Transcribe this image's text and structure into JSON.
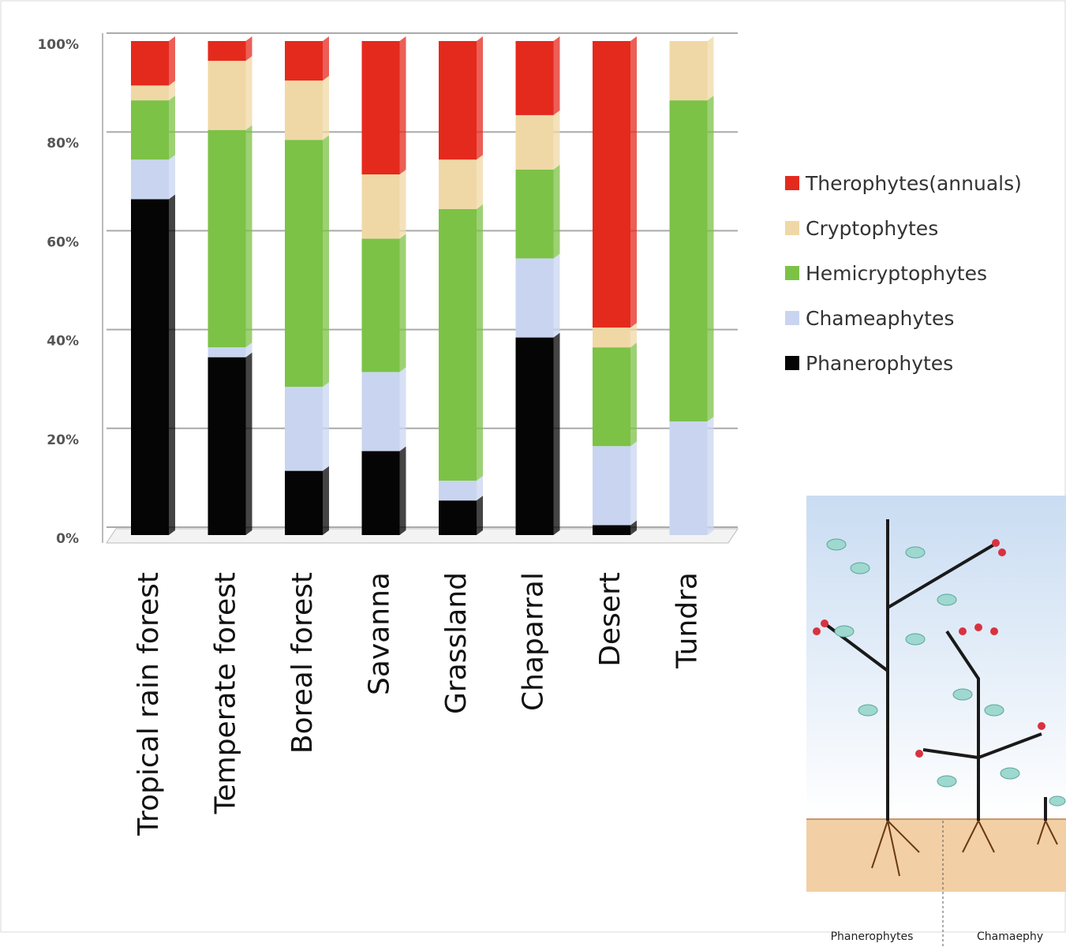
{
  "chart_data": {
    "type": "stacked_bar",
    "categories": [
      "Tropical rain forest",
      "Temperate forest",
      "Boreal forest",
      "Savanna",
      "Grassland",
      "Chaparral",
      "Desert",
      "Tundra"
    ],
    "series": [
      {
        "name": "Phanerophytes",
        "color": "#050505",
        "values": [
          68,
          36,
          13,
          17,
          7,
          40,
          2,
          0
        ]
      },
      {
        "name": "Chameaphytes",
        "color": "#c9d5f0",
        "values": [
          8,
          2,
          17,
          16,
          4,
          16,
          16,
          23
        ]
      },
      {
        "name": "Hemicryptophytes",
        "color": "#7cc246",
        "values": [
          12,
          44,
          50,
          27,
          55,
          18,
          20,
          65
        ]
      },
      {
        "name": "Cryptophytes",
        "color": "#f0d8a6",
        "values": [
          3,
          14,
          12,
          13,
          10,
          11,
          4,
          12
        ]
      },
      {
        "name": "Therophytes(annuals)",
        "color": "#e42a1d",
        "values": [
          9,
          4,
          8,
          27,
          24,
          15,
          58,
          0
        ]
      }
    ],
    "ylim": [
      0,
      100
    ],
    "yticks": [
      {
        "value": 0,
        "label": "0%"
      },
      {
        "value": 20,
        "label": "20%"
      },
      {
        "value": 40,
        "label": "40%"
      },
      {
        "value": 60,
        "label": "60%"
      },
      {
        "value": 80,
        "label": "80%"
      },
      {
        "value": 100,
        "label": "100%"
      }
    ],
    "grid": true,
    "legend": "right"
  },
  "illustration": {
    "labels": [
      "Phanerophytes",
      "Chamaephy"
    ]
  }
}
